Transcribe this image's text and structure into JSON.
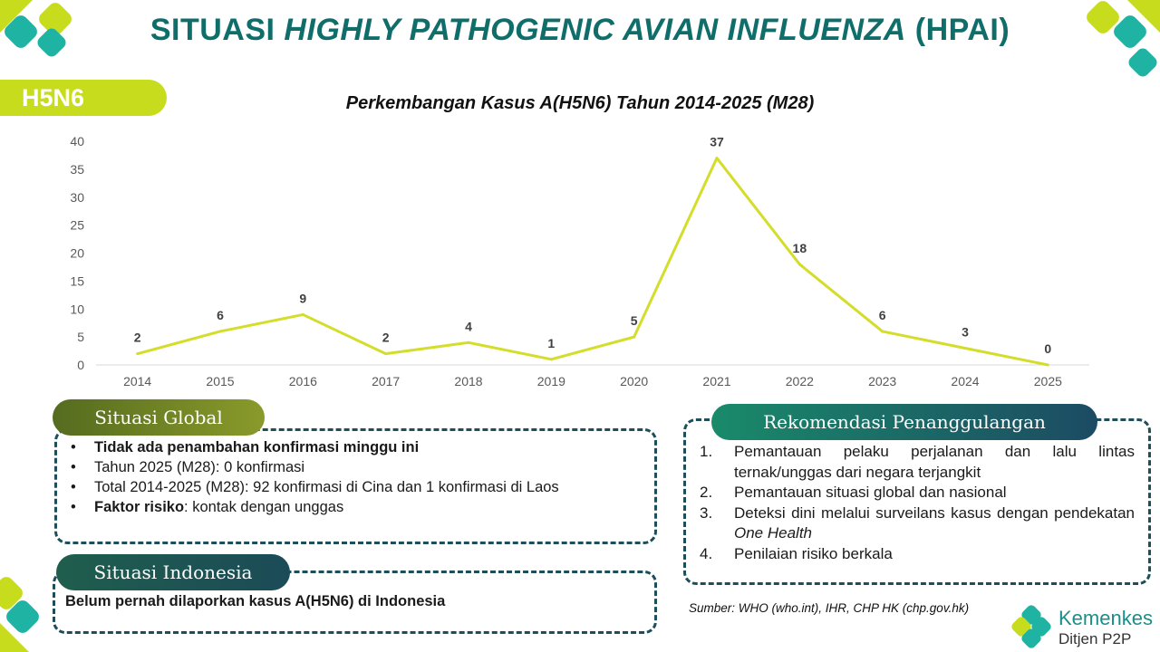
{
  "header": {
    "title_part1": "SITUASI ",
    "title_part2": "HIGHLY PATHOGENIC AVIAN INFLUENZA",
    "title_part3": " (HPAI)",
    "tag": "H5N6",
    "chart_title": "Perkembangan Kasus A(H5N6) Tahun 2014-2025 (M28)"
  },
  "chart_data": {
    "type": "line",
    "title": "Perkembangan Kasus A(H5N6) Tahun 2014-2025 (M28)",
    "categories": [
      "2014",
      "2015",
      "2016",
      "2017",
      "2018",
      "2019",
      "2020",
      "2021",
      "2022",
      "2023",
      "2024",
      "2025"
    ],
    "values": [
      2,
      6,
      9,
      2,
      4,
      1,
      5,
      37,
      18,
      6,
      3,
      0
    ],
    "ylim": [
      0,
      40
    ],
    "yticks": [
      0,
      5,
      10,
      15,
      20,
      25,
      30,
      35,
      40
    ],
    "grid": false,
    "legend": "none",
    "line_color": "#d4dd2a"
  },
  "global": {
    "heading": "Situasi Global",
    "items": [
      {
        "bold": "Tidak ada penambahan konfirmasi minggu ini",
        "text": ""
      },
      {
        "bold": "",
        "text": "Tahun 2025 (M28): 0 konfirmasi"
      },
      {
        "bold": "",
        "text": "Total 2014-2025 (M28): 92 konfirmasi di Cina dan 1 konfirmasi di Laos"
      },
      {
        "bold": "Faktor risiko",
        "text": ": kontak dengan unggas"
      }
    ]
  },
  "indonesia": {
    "heading": "Situasi Indonesia",
    "text": "Belum pernah dilaporkan kasus A(H5N6) di Indonesia"
  },
  "rekomendasi": {
    "heading": "Rekomendasi Penanggulangan",
    "items": [
      {
        "num": "1.",
        "text": "Pemantauan pelaku perjalanan dan lalu lintas ternak/unggas dari negara terjangkit",
        "italic": ""
      },
      {
        "num": "2.",
        "text": "Pemantauan situasi global dan nasional",
        "italic": ""
      },
      {
        "num": "3.",
        "text": "Deteksi dini melalui surveilans kasus dengan pendekatan ",
        "italic": "One Health"
      },
      {
        "num": "4.",
        "text": "Penilaian risiko berkala",
        "italic": ""
      }
    ]
  },
  "source": "Sumber: WHO (who.int), IHR, CHP HK (chp.gov.hk)",
  "logo": {
    "name": "Kemenkes",
    "sub": "Ditjen P2P"
  },
  "colors": {
    "teal": "#0f6e6a",
    "lime": "#c8dc1e",
    "dark_teal": "#1d4e5a"
  }
}
